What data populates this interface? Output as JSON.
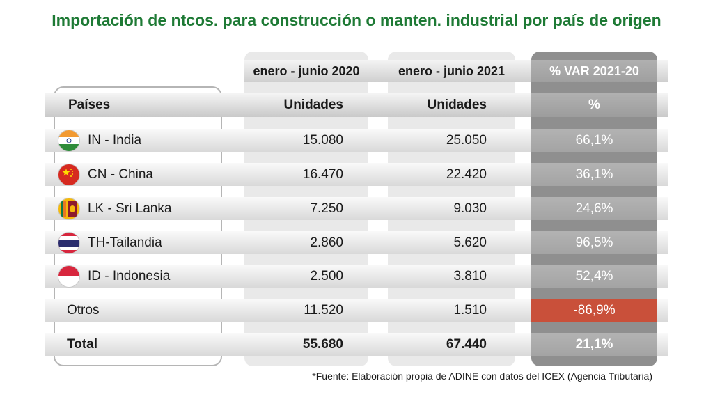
{
  "title": "Importación de ntcos. para construcción o manten. industrial por país de origen",
  "periods": [
    "enero - junio 2020",
    "enero - junio 2021",
    "% VAR 2021-20"
  ],
  "headers": {
    "country": "Países",
    "units_2020": "Unidades",
    "units_2021": "Unidades",
    "var": "%"
  },
  "rows": [
    {
      "country": "IN - India",
      "flag": "india-flag-icon",
      "v2020": "15.080",
      "v2021": "25.050",
      "var": "66,1%"
    },
    {
      "country": "CN - China",
      "flag": "china-flag-icon",
      "v2020": "16.470",
      "v2021": "22.420",
      "var": "36,1%"
    },
    {
      "country": "LK - Sri Lanka",
      "flag": "sri-lanka-flag-icon",
      "v2020": "7.250",
      "v2021": "9.030",
      "var": "24,6%"
    },
    {
      "country": "TH-Tailandia",
      "flag": "thailand-flag-icon",
      "v2020": "2.860",
      "v2021": "5.620",
      "var": "96,5%"
    },
    {
      "country": "ID - Indonesia",
      "flag": "indonesia-flag-icon",
      "v2020": "2.500",
      "v2021": "3.810",
      "var": "52,4%"
    },
    {
      "country": "Otros",
      "flag": "",
      "v2020": "11.520",
      "v2021": "1.510",
      "var": "-86,9%"
    },
    {
      "country": "Total",
      "flag": "",
      "v2020": "55.680",
      "v2021": "67.440",
      "var": "21,1%"
    }
  ],
  "source": "*Fuente: Elaboración propia de ADINE con datos del ICEX (Agencia Tributaria)",
  "colors": {
    "title": "#1e7a35",
    "negative": "#c9503a",
    "var_column": "#8f8f8f"
  },
  "chart_data": {
    "type": "table",
    "title": "Importación de ntcos. para construcción o manten. industrial por país de origen",
    "columns": [
      "Países",
      "enero - junio 2020 Unidades",
      "enero - junio 2021 Unidades",
      "% VAR 2021-20"
    ],
    "categories": [
      "IN - India",
      "CN - China",
      "LK - Sri Lanka",
      "TH-Tailandia",
      "ID - Indonesia",
      "Otros",
      "Total"
    ],
    "series": [
      {
        "name": "enero - junio 2020",
        "values": [
          15080,
          16470,
          7250,
          2860,
          2500,
          11520,
          55680
        ]
      },
      {
        "name": "enero - junio 2021",
        "values": [
          25050,
          22420,
          9030,
          5620,
          3810,
          1510,
          67440
        ]
      },
      {
        "name": "% VAR 2021-20",
        "values": [
          66.1,
          36.1,
          24.6,
          96.5,
          52.4,
          -86.9,
          21.1
        ]
      }
    ]
  }
}
